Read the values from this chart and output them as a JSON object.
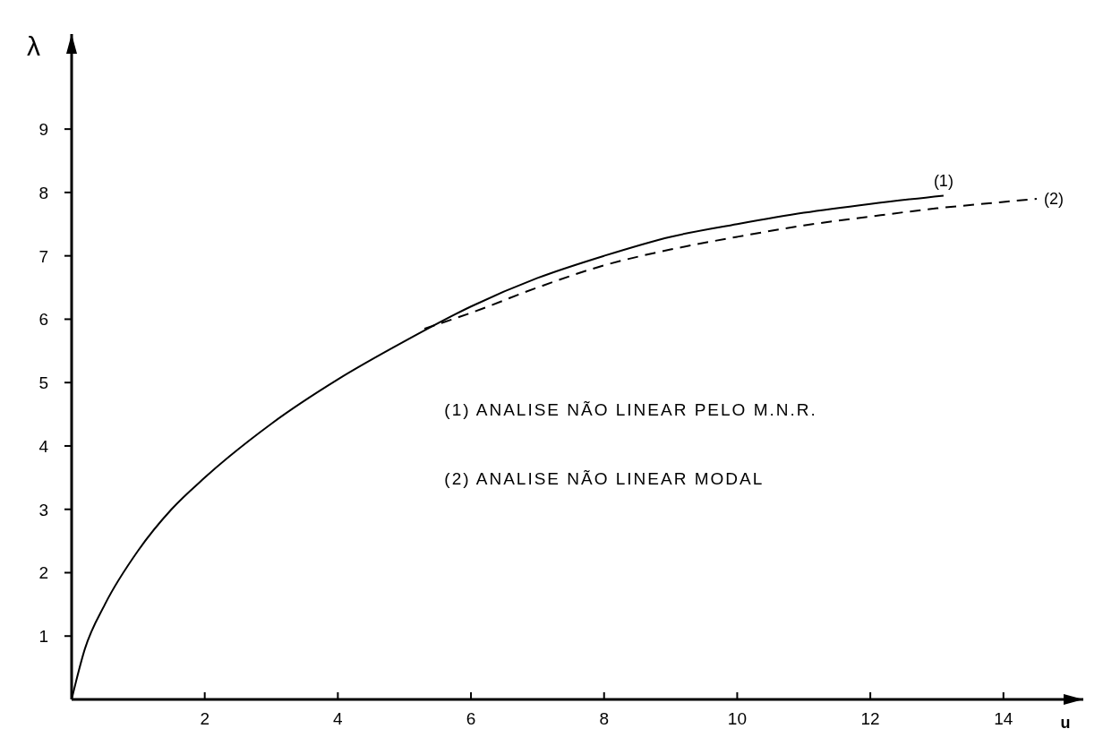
{
  "chart_data": {
    "type": "line",
    "xlabel": "u",
    "ylabel": "λ",
    "xlim": [
      0,
      15.2
    ],
    "ylim": [
      0,
      10.5
    ],
    "xticks": [
      2,
      4,
      6,
      8,
      10,
      12,
      14
    ],
    "yticks": [
      1,
      2,
      3,
      4,
      5,
      6,
      7,
      8,
      9
    ],
    "grid": false,
    "marker": "none",
    "annotations": [
      "(1)   ANALISE NÃO LINEAR PELO M.N.R.",
      "(2)   ANALISE NÃO LINEAR MODAL"
    ],
    "series": [
      {
        "name": "(1)",
        "color": "#000000",
        "line_style": "solid",
        "x": [
          0,
          0.2,
          0.5,
          1,
          1.5,
          2,
          3,
          4,
          5,
          6,
          7,
          8,
          9,
          10,
          11,
          12,
          13.1
        ],
        "values": [
          0,
          0.8,
          1.5,
          2.35,
          3.0,
          3.5,
          4.35,
          5.05,
          5.65,
          6.2,
          6.65,
          7.0,
          7.3,
          7.5,
          7.68,
          7.82,
          7.95
        ]
      },
      {
        "name": "(2)",
        "color": "#000000",
        "line_style": "dashed",
        "x": [
          5.3,
          6,
          7,
          8,
          9,
          10,
          11,
          12,
          13,
          14,
          14.5
        ],
        "values": [
          5.85,
          6.1,
          6.5,
          6.85,
          7.1,
          7.3,
          7.48,
          7.62,
          7.75,
          7.85,
          7.9
        ]
      }
    ]
  }
}
